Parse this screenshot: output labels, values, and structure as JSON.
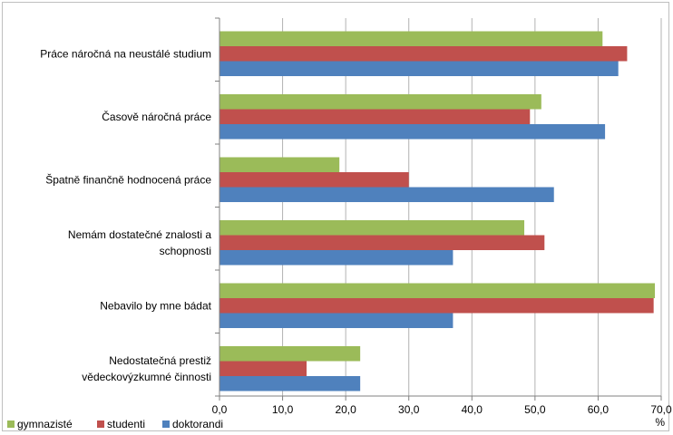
{
  "chart_data": {
    "type": "bar",
    "orientation": "horizontal",
    "categories": [
      [
        "Práce náročná na neustálé studium"
      ],
      [
        "Časově náročná práce"
      ],
      [
        "Špatně finančně hodnocená práce"
      ],
      [
        "Nemám dostatečné znalosti a",
        "schopnosti"
      ],
      [
        "Nebavilo by mne bádat"
      ],
      [
        "Nedostatečná prestiž",
        "vědeckovýzkumné činnosti"
      ]
    ],
    "series": [
      {
        "name": "gymnazisté",
        "color": "#9bbb59",
        "values": [
          60.7,
          51.0,
          19.0,
          48.3,
          69.0,
          22.3
        ]
      },
      {
        "name": "studenti",
        "color": "#c0504d",
        "values": [
          64.6,
          49.2,
          30.0,
          51.5,
          68.8,
          13.8
        ]
      },
      {
        "name": "doktorandi",
        "color": "#4f81bd",
        "values": [
          63.2,
          61.1,
          53.0,
          37.0,
          37.0,
          22.3
        ]
      }
    ],
    "xlim": [
      0,
      70
    ],
    "xticks": [
      "0,0",
      "10,0",
      "20,0",
      "30,0",
      "40,0",
      "50,0",
      "60,0",
      "70,0"
    ],
    "xunit": "%",
    "grid": true,
    "legend": "bottom-left"
  }
}
